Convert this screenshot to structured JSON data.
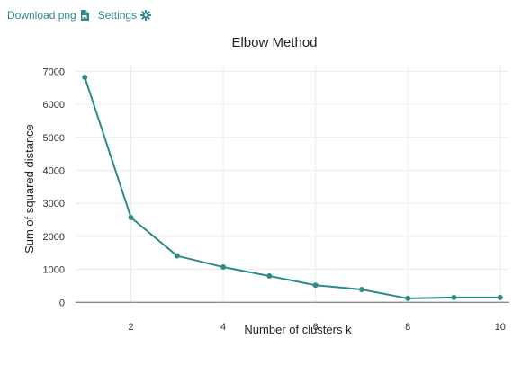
{
  "toolbar": {
    "download_label": "Download png",
    "settings_label": "Settings",
    "accent_color": "#2f8a8a"
  },
  "chart_data": {
    "type": "line",
    "title": "Elbow Method",
    "xlabel": "Number of clusters k",
    "ylabel": "Sum of squared distance",
    "x": [
      1,
      2,
      3,
      4,
      5,
      6,
      7,
      8,
      9,
      10
    ],
    "y": [
      6820,
      2570,
      1410,
      1070,
      800,
      520,
      390,
      120,
      150,
      150
    ],
    "xlim": [
      0.8,
      10.2
    ],
    "ylim": [
      -100,
      7200
    ],
    "xticks": [
      2,
      4,
      6,
      8,
      10
    ],
    "yticks": [
      0,
      1000,
      2000,
      3000,
      4000,
      5000,
      6000,
      7000
    ],
    "grid": true,
    "line_color": "#2e8b8b"
  }
}
